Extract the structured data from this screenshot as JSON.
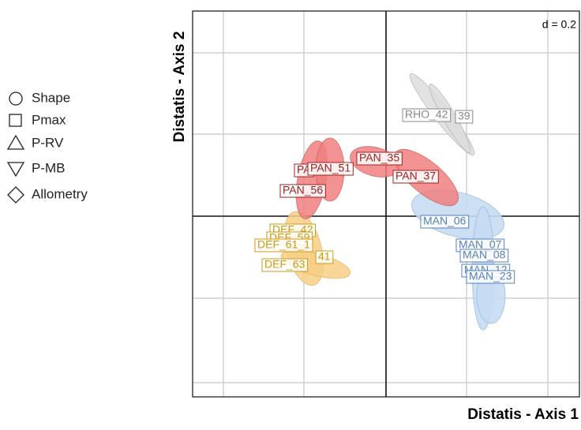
{
  "axis_labels": {
    "y": "Distatis - Axis 2",
    "x": "Distatis - Axis 1"
  },
  "scale": "d = 0.2",
  "legend": [
    "Shape",
    "Pmax",
    "P-RV",
    "P-MB",
    "Allometry"
  ],
  "points": [
    {
      "label": "RHO_42"
    },
    {
      "label": "39"
    },
    {
      "label": "PA"
    },
    {
      "label": "PAN_51"
    },
    {
      "label": "PAN_35"
    },
    {
      "label": "PAN_37"
    },
    {
      "label": "PAN_56"
    },
    {
      "label": "MAN_06"
    },
    {
      "label": "MAN_07"
    },
    {
      "label": "MAN_08"
    },
    {
      "label": "MAN_12"
    },
    {
      "label": "MAN_23"
    },
    {
      "label": "DEF_42"
    },
    {
      "label": "DEF_59"
    },
    {
      "label": "DEF_61_1"
    },
    {
      "label": "41"
    },
    {
      "label": "DEF_63"
    }
  ]
}
